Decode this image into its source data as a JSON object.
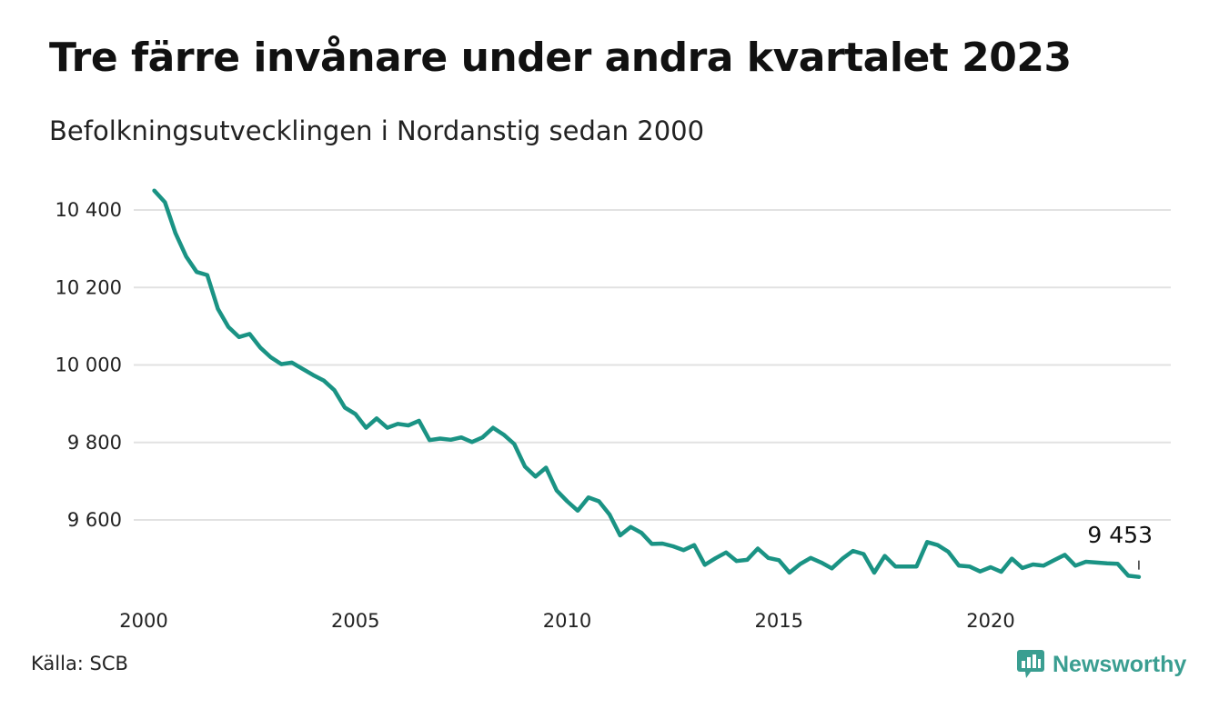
{
  "header": {
    "title": "Tre färre invånare under andra kvartalet 2023",
    "subtitle": "Befolkningsutvecklingen i Nordanstig sedan 2000"
  },
  "footer": {
    "source": "Källa: SCB",
    "brand": "Newsworthy",
    "brand_icon": "chart-logo-icon"
  },
  "colors": {
    "line": "#1a9384",
    "grid": "#e2e2e2",
    "brand": "#3a9e91"
  },
  "chart_data": {
    "type": "line",
    "title": "Tre färre invånare under andra kvartalet 2023",
    "subtitle": "Befolkningsutvecklingen i Nordanstig sedan 2000",
    "xlabel": "",
    "ylabel": "",
    "xlim": [
      2000,
      2023.5
    ],
    "ylim": [
      9440,
      10460
    ],
    "y_ticks": [
      9600,
      9800,
      10000,
      10200,
      10400
    ],
    "y_tick_labels": [
      "9 600",
      "9 800",
      "10 000",
      "10 200",
      "10 400"
    ],
    "x_ticks": [
      2000,
      2005,
      2010,
      2015,
      2020
    ],
    "x_tick_labels": [
      "2000",
      "2005",
      "2010",
      "2015",
      "2020"
    ],
    "grid": "horizontal",
    "legend": "none",
    "end_label": "9 453",
    "series": [
      {
        "x": [
          2000.25,
          2000.5,
          2000.75,
          2001.0,
          2001.25,
          2001.5,
          2001.75,
          2002.0,
          2002.25,
          2002.5,
          2002.75,
          2003.0,
          2003.25,
          2003.5,
          2003.75,
          2004.0,
          2004.25,
          2004.5,
          2004.75,
          2005.0,
          2005.25,
          2005.5,
          2005.75,
          2006.0,
          2006.25,
          2006.5,
          2006.75,
          2007.0,
          2007.25,
          2007.5,
          2007.75,
          2008.0,
          2008.25,
          2008.5,
          2008.75,
          2009.0,
          2009.25,
          2009.5,
          2009.75,
          2010.0,
          2010.25,
          2010.5,
          2010.75,
          2011.0,
          2011.25,
          2011.5,
          2011.75,
          2012.0,
          2012.25,
          2012.5,
          2012.75,
          2013.0,
          2013.25,
          2013.5,
          2013.75,
          2014.0,
          2014.25,
          2014.5,
          2014.75,
          2015.0,
          2015.25,
          2015.5,
          2015.75,
          2016.0,
          2016.25,
          2016.5,
          2016.75,
          2017.0,
          2017.25,
          2017.5,
          2017.75,
          2018.0,
          2018.25,
          2018.5,
          2018.75,
          2019.0,
          2019.25,
          2019.5,
          2019.75,
          2020.0,
          2020.25,
          2020.5,
          2020.75,
          2021.0,
          2021.25,
          2021.5,
          2021.75,
          2022.0,
          2022.25,
          2022.5,
          2022.75,
          2023.0,
          2023.25,
          2023.5
        ],
        "values": [
          10450,
          10420,
          10340,
          10280,
          10240,
          10232,
          10145,
          10098,
          10072,
          10080,
          10045,
          10020,
          10002,
          10006,
          9990,
          9974,
          9960,
          9935,
          9890,
          9873,
          9838,
          9862,
          9838,
          9848,
          9844,
          9856,
          9806,
          9810,
          9807,
          9813,
          9801,
          9813,
          9838,
          9820,
          9796,
          9738,
          9712,
          9735,
          9676,
          9648,
          9624,
          9658,
          9648,
          9614,
          9560,
          9582,
          9567,
          9538,
          9539,
          9532,
          9522,
          9535,
          9484,
          9501,
          9516,
          9494,
          9497,
          9526,
          9502,
          9496,
          9464,
          9486,
          9502,
          9490,
          9475,
          9500,
          9520,
          9512,
          9464,
          9507,
          9480,
          9480,
          9480,
          9543,
          9535,
          9518,
          9482,
          9480,
          9467,
          9478,
          9466,
          9500,
          9476,
          9485,
          9482,
          9496,
          9510,
          9482,
          9492,
          9490,
          9488,
          9487,
          9456,
          9453
        ]
      }
    ]
  }
}
